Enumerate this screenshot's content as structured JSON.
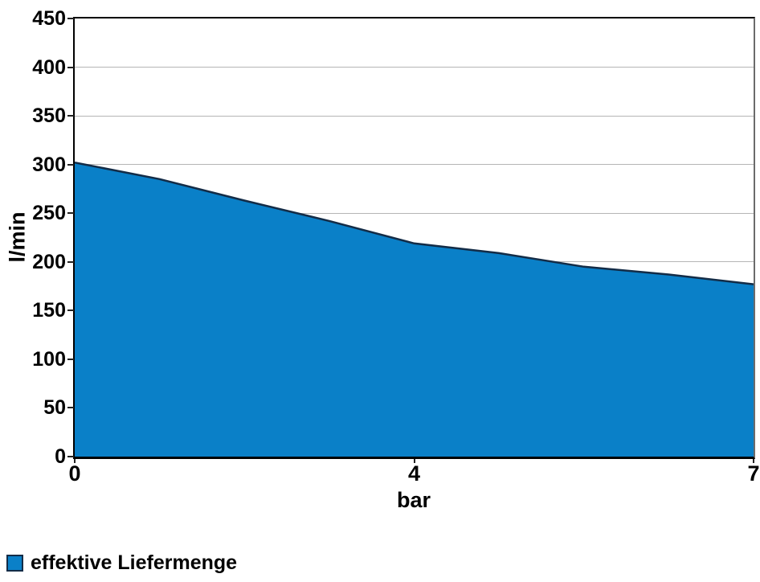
{
  "page": {
    "background": "#ffffff"
  },
  "chart_data": {
    "type": "area",
    "title": "",
    "xlabel": "bar",
    "ylabel": "l/min",
    "ylim": [
      0,
      450
    ],
    "y_ticks": [
      0,
      50,
      100,
      150,
      200,
      250,
      300,
      350,
      400,
      450
    ],
    "x_ticks": [
      {
        "label": "0",
        "pos": 0.0
      },
      {
        "label": "4",
        "pos": 0.5
      },
      {
        "label": "7",
        "pos": 1.0
      }
    ],
    "grid": true,
    "legend_position": "bottom-left",
    "series": [
      {
        "name": "effektive Liefermenge",
        "fill_color": "#0a80c8",
        "line_color": "#132c47",
        "points": [
          {
            "pos": 0.0,
            "value": 302
          },
          {
            "pos": 0.125,
            "value": 285
          },
          {
            "pos": 0.25,
            "value": 263
          },
          {
            "pos": 0.375,
            "value": 242
          },
          {
            "pos": 0.5,
            "value": 219
          },
          {
            "pos": 0.625,
            "value": 209
          },
          {
            "pos": 0.75,
            "value": 195
          },
          {
            "pos": 0.875,
            "value": 187
          },
          {
            "pos": 1.0,
            "value": 177
          }
        ]
      }
    ],
    "colors": {
      "grid": "#b5b5b5",
      "axis": "#000000",
      "plot_right_border": "#6b6b6b",
      "text": "#000000"
    }
  },
  "legend": {
    "label": "effektive Liefermenge",
    "swatch_color": "#0a80c8",
    "swatch_border": "#132c47"
  }
}
